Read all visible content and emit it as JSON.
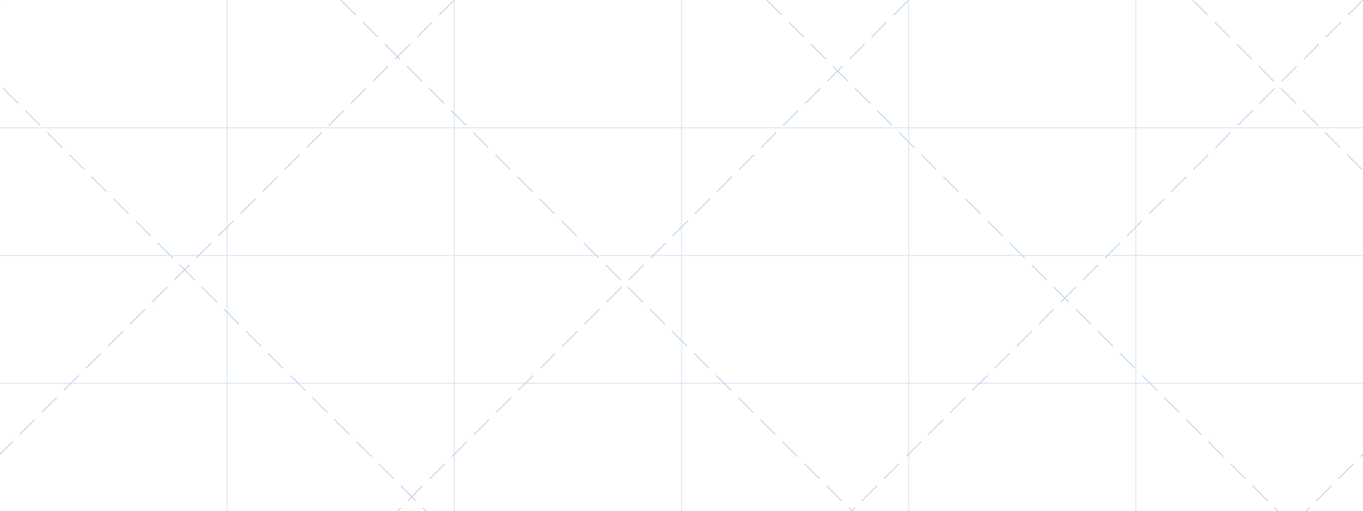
{
  "canvas": {
    "background": "#ffffff",
    "grid_color": "#d6e4f2",
    "diagonal_color": "#b9cfe6",
    "vertical_line_count": 5,
    "horizontal_line_count": 3
  }
}
